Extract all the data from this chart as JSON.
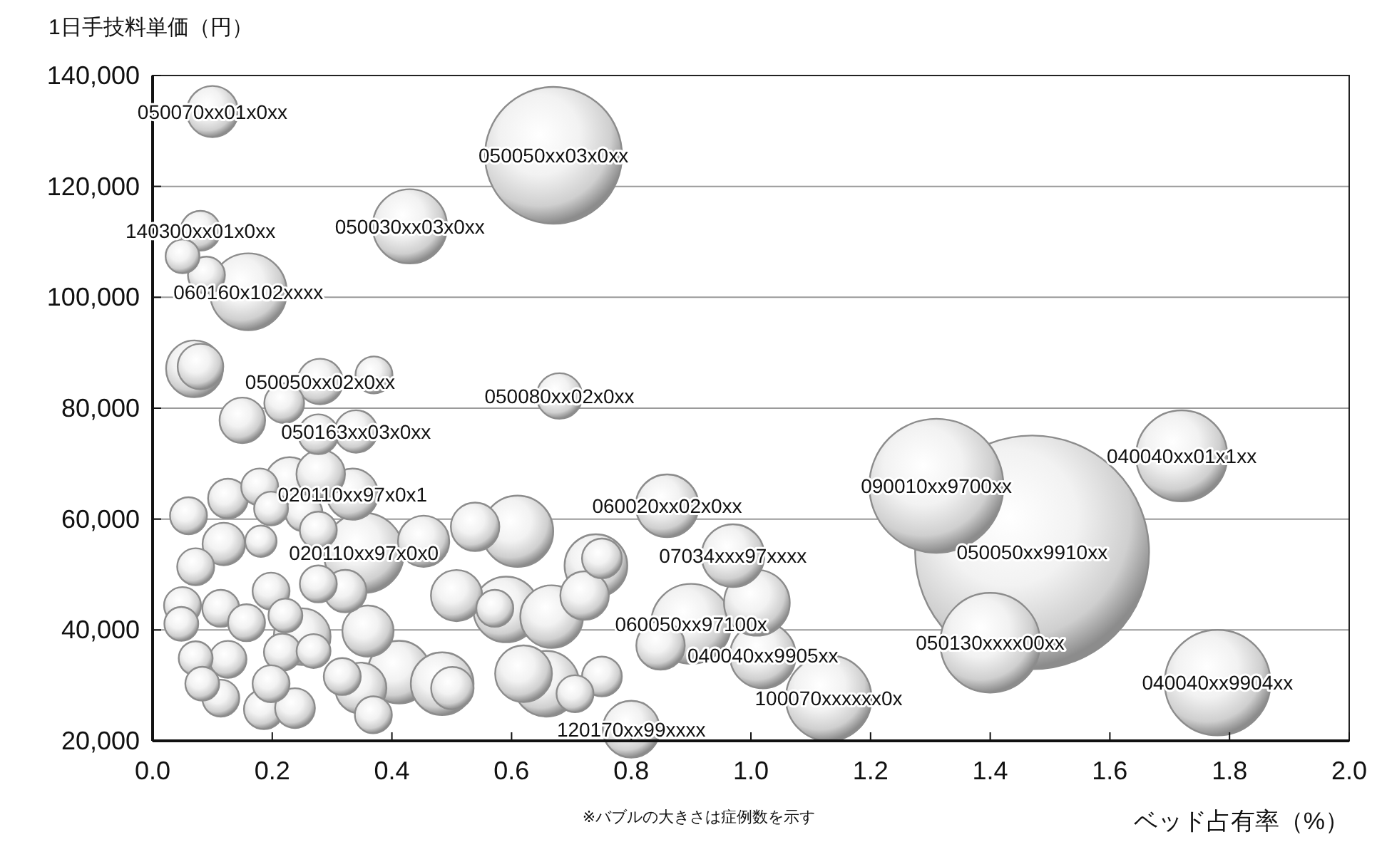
{
  "chart_data": {
    "type": "bubble",
    "xlabel": "ベッド占有率（%）",
    "ylabel": "1日手技料単価（円）",
    "xlim": [
      0,
      2
    ],
    "xticks": [
      {
        "value": 0,
        "label": "0.0"
      },
      {
        "value": 0.2,
        "label": "0.2"
      },
      {
        "value": 0.4,
        "label": "0.4"
      },
      {
        "value": 0.6,
        "label": "0.6"
      },
      {
        "value": 0.8,
        "label": "0.8"
      },
      {
        "value": 1.0,
        "label": "1.0"
      },
      {
        "value": 1.2,
        "label": "1.2"
      },
      {
        "value": 1.4,
        "label": "1.4"
      },
      {
        "value": 1.6,
        "label": "1.6"
      },
      {
        "value": 1.8,
        "label": "1.8"
      },
      {
        "value": 2.0,
        "label": "2.0"
      }
    ],
    "ylim": [
      20000,
      140000
    ],
    "yticks": [
      {
        "value": 20000,
        "label": "20,000"
      },
      {
        "value": 40000,
        "label": "40,000"
      },
      {
        "value": 60000,
        "label": "60,000"
      },
      {
        "value": 80000,
        "label": "80,000"
      },
      {
        "value": 100000,
        "label": "100,000"
      },
      {
        "value": 120000,
        "label": "120,000"
      },
      {
        "value": 140000,
        "label": "140,000"
      }
    ],
    "grid": "y",
    "series": [
      {
        "color": "#8c8c8c",
        "x": [
          1.47,
          0.67,
          1.31,
          1.78,
          1.4,
          1.72,
          1.13,
          0.9,
          0.353,
          0.16,
          0.43,
          0.61,
          1.02,
          1.01,
          0.591,
          0.658,
          0.97,
          0.86,
          0.412,
          0.484,
          0.667,
          0.741,
          0.8,
          0.25,
          0.62,
          0.1,
          0.334,
          0.36,
          0.348,
          0.453,
          0.508,
          0.07,
          0.229,
          0.281,
          0.539,
          0.722,
          0.849,
          0.68,
          0.28,
          0.15,
          0.08,
          0.34,
          0.119,
          0.322,
          0.501,
          0.277,
          0.22,
          0.08,
          0.186,
          0.238,
          0.751,
          0.751,
          0.09,
          0.37,
          0.06,
          0.126,
          0.179,
          0.253,
          0.277,
          0.072,
          0.198,
          0.277,
          0.05,
          0.114,
          0.157,
          0.126,
          0.217,
          0.114,
          0.198,
          0.317,
          0.369,
          0.572,
          0.706,
          0.05,
          0.198,
          0.222,
          0.048,
          0.072,
          0.269,
          0.083,
          0.181
        ],
        "values": [
          54000,
          125600,
          66000,
          30500,
          37700,
          71400,
          27700,
          41100,
          53900,
          101000,
          112800,
          57800,
          35400,
          44900,
          43700,
          30300,
          53400,
          62400,
          32400,
          30300,
          42400,
          51600,
          22100,
          38800,
          32100,
          133500,
          64500,
          39800,
          29500,
          56000,
          46200,
          87100,
          66800,
          68100,
          58600,
          46200,
          37200,
          82200,
          84800,
          77800,
          87500,
          75800,
          55500,
          47000,
          29500,
          75300,
          80900,
          112000,
          25700,
          25900,
          52900,
          31600,
          104000,
          86000,
          60600,
          63700,
          65800,
          61100,
          58000,
          51400,
          47000,
          48300,
          44400,
          43900,
          41300,
          34700,
          36000,
          27700,
          30300,
          31600,
          24700,
          43900,
          28500,
          107400,
          61900,
          42600,
          41100,
          34900,
          36200,
          30300,
          56000
        ],
        "sizes": [
          1,
          0.343,
          0.329,
          0.204,
          0.182,
          0.152,
          0.134,
          0.117,
          0.117,
          0.108,
          0.101,
          0.093,
          0.079,
          0.079,
          0.079,
          0.079,
          0.072,
          0.072,
          0.072,
          0.072,
          0.072,
          0.072,
          0.059,
          0.059,
          0.059,
          0.048,
          0.048,
          0.048,
          0.048,
          0.048,
          0.048,
          0.059,
          0.043,
          0.043,
          0.043,
          0.043,
          0.043,
          0.038,
          0.038,
          0.038,
          0.038,
          0.033,
          0.033,
          0.033,
          0.033,
          0.029,
          0.029,
          0.029,
          0.029,
          0.029,
          0.029,
          0.029,
          0.025,
          0.025,
          0.025,
          0.029,
          0.025,
          0.025,
          0.025,
          0.025,
          0.025,
          0.025,
          0.025,
          0.025,
          0.025,
          0.025,
          0.025,
          0.025,
          0.025,
          0.025,
          0.025,
          0.025,
          0.025,
          0.021,
          0.021,
          0.021,
          0.021,
          0.021,
          0.021,
          0.021,
          0.018
        ]
      }
    ],
    "annotations": [
      {
        "text": "050050xx9910xx",
        "x": 1.47,
        "y": 54000
      },
      {
        "text": "050050xx03x0xx",
        "x": 0.67,
        "y": 125600
      },
      {
        "text": "090010xx9700xx",
        "x": 1.31,
        "y": 66000
      },
      {
        "text": "040040xx9904xx",
        "x": 1.78,
        "y": 30500
      },
      {
        "text": "050130xxxx00xx",
        "x": 1.4,
        "y": 37700
      },
      {
        "text": "040040xx01x1xx",
        "x": 1.72,
        "y": 71400
      },
      {
        "text": "100070xxxxxx0x",
        "x": 1.13,
        "y": 27700
      },
      {
        "text": "060050xx97100x",
        "x": 0.9,
        "y": 41100
      },
      {
        "text": "020110xx97x0x0",
        "x": 0.353,
        "y": 53900
      },
      {
        "text": "060160x102xxxx",
        "x": 0.16,
        "y": 101000
      },
      {
        "text": "050030xx03x0xx",
        "x": 0.43,
        "y": 112800
      },
      {
        "text": "040040xx9905xx",
        "x": 1.02,
        "y": 35400
      },
      {
        "text": "07034xxx97xxxx",
        "x": 0.97,
        "y": 53400
      },
      {
        "text": "060020xx02x0xx",
        "x": 0.86,
        "y": 62400
      },
      {
        "text": "120170xx99xxxx",
        "x": 0.8,
        "y": 22100
      },
      {
        "text": "050070xx01x0xx",
        "x": 0.1,
        "y": 133500
      },
      {
        "text": "020110xx97x0x1",
        "x": 0.334,
        "y": 64500
      },
      {
        "text": "050080xx02x0xx",
        "x": 0.68,
        "y": 82200
      },
      {
        "text": "050050xx02x0xx",
        "x": 0.28,
        "y": 84800
      },
      {
        "text": "050163xx03x0xx",
        "x": 0.34,
        "y": 75800
      },
      {
        "text": "140300xx01x0xx",
        "x": 0.08,
        "y": 112000
      },
      "※バブルの大きさは症例数を示す"
    ]
  }
}
